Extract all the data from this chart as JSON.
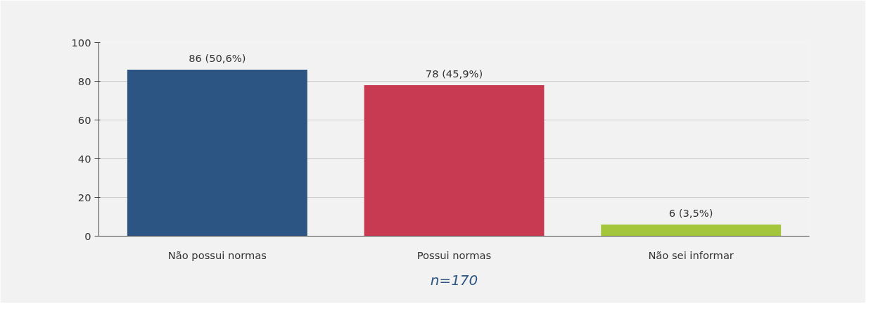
{
  "chart_data": {
    "type": "bar",
    "categories": [
      "Não possui normas",
      "Possui normas",
      "Não sei informar"
    ],
    "values": [
      86,
      78,
      6
    ],
    "colors": [
      "#2d5583",
      "#c73a52",
      "#a4c63c"
    ],
    "value_labels": [
      "86 (50,6%)",
      "78 (45,9%)",
      "6 (3,5%)"
    ],
    "ylim": [
      0,
      100
    ],
    "yticks": [
      0,
      20,
      40,
      60,
      80,
      100
    ],
    "grid": "y",
    "annotations": [
      "n=170"
    ]
  }
}
